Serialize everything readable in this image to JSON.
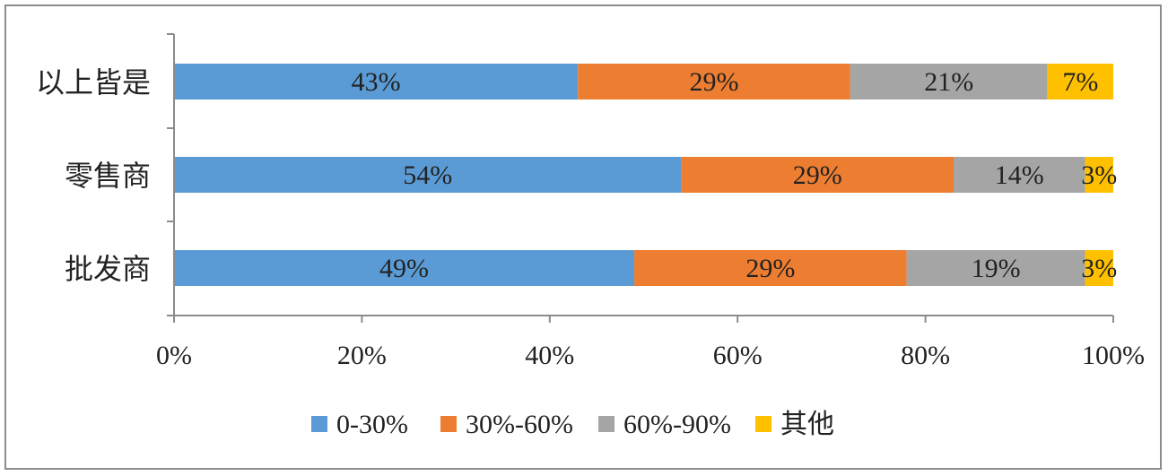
{
  "chart_data": {
    "type": "bar",
    "orientation": "horizontal",
    "stacked": true,
    "percent": true,
    "categories": [
      "以上皆是",
      "零售商",
      "批发商"
    ],
    "series": [
      {
        "name": "0-30%",
        "color": "#5b9bd5",
        "values": [
          43,
          54,
          49
        ],
        "labels": [
          "43%",
          "54%",
          "49%"
        ]
      },
      {
        "name": "30%-60%",
        "color": "#ed7d31",
        "values": [
          29,
          29,
          29
        ],
        "labels": [
          "29%",
          "29%",
          "29%"
        ]
      },
      {
        "name": "60%-90%",
        "color": "#a5a5a5",
        "values": [
          21,
          14,
          19
        ],
        "labels": [
          "21%",
          "14%",
          "19%"
        ]
      },
      {
        "name": "其他",
        "color": "#ffc000",
        "values": [
          7,
          3,
          3
        ],
        "labels": [
          "7%",
          "3%",
          "3%"
        ]
      }
    ],
    "xlim": [
      0,
      100
    ],
    "xticks": [
      "0%",
      "20%",
      "40%",
      "60%",
      "80%",
      "100%"
    ],
    "grid": false,
    "legend": "bottom"
  }
}
